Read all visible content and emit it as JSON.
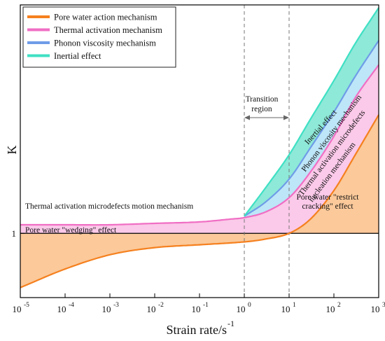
{
  "chart_data": {
    "type": "area",
    "xlabel": "Strain rate/s",
    "xlabel_sup": "-1",
    "ylabel": "K",
    "x_scale": "log",
    "xlim": [
      1e-05,
      1000
    ],
    "x_ticks": [
      {
        "value": 1e-05,
        "base": "10",
        "exp": "-5"
      },
      {
        "value": 0.0001,
        "base": "10",
        "exp": "-4"
      },
      {
        "value": 0.001,
        "base": "10",
        "exp": "-3"
      },
      {
        "value": 0.01,
        "base": "10",
        "exp": "-2"
      },
      {
        "value": 0.1,
        "base": "10",
        "exp": "-1"
      },
      {
        "value": 1,
        "base": "10",
        "exp": "0"
      },
      {
        "value": 10,
        "base": "10",
        "exp": "1"
      },
      {
        "value": 100,
        "base": "10",
        "exp": "2"
      },
      {
        "value": 1000,
        "base": "10",
        "exp": "3"
      }
    ],
    "y_ticks": [
      {
        "value": 1,
        "label": "1"
      }
    ],
    "ylim": [
      0.55,
      2.6
    ],
    "reference_line_y": 1,
    "transition_region": {
      "x": [
        1,
        10
      ],
      "label_line1": "Transition",
      "label_line2": "region"
    },
    "series": [
      {
        "name": "Pore water action mechanism",
        "color": "#f5801e",
        "fill": "#fbc99a",
        "x": [
          1e-05,
          0.0001,
          0.001,
          0.01,
          0.1,
          1,
          3,
          10,
          30,
          100,
          300,
          1000
        ],
        "y": [
          0.62,
          0.75,
          0.85,
          0.9,
          0.92,
          0.94,
          0.96,
          1.0,
          1.1,
          1.3,
          1.55,
          1.83
        ]
      },
      {
        "name": "Thermal activation mechanism",
        "color": "#f06ec4",
        "fill": "#fbc9e9",
        "x": [
          1e-05,
          0.0001,
          0.001,
          0.01,
          0.1,
          0.5,
          1,
          3,
          10,
          30,
          100,
          300,
          1000
        ],
        "y": [
          1.06,
          1.06,
          1.06,
          1.07,
          1.08,
          1.1,
          1.11,
          1.15,
          1.25,
          1.43,
          1.68,
          1.95,
          2.18
        ]
      },
      {
        "name": "Phonon viscosity mechanism",
        "color": "#6f9ce8",
        "fill": "#bde6f8",
        "x": [
          1,
          3,
          10,
          30,
          100,
          300,
          1000
        ],
        "y": [
          1.12,
          1.22,
          1.38,
          1.6,
          1.85,
          2.1,
          2.35
        ]
      },
      {
        "name": "Inertial effect",
        "color": "#3fe0c4",
        "fill": "#8ee9d8",
        "x": [
          1,
          3,
          10,
          30,
          100,
          300,
          1000
        ],
        "y": [
          1.12,
          1.32,
          1.55,
          1.8,
          2.07,
          2.33,
          2.58
        ]
      }
    ],
    "legend_position": "top-left",
    "annotations": [
      "Pore water \"wedging\" effect",
      "Thermal activation microdefects motion mechanism",
      "Inertial effect",
      "Phonon viscosity mechanism",
      "Thermal activation microdefects",
      "nucleation mechanism",
      "Pore water \"restrict",
      "cracking\" effect"
    ]
  }
}
